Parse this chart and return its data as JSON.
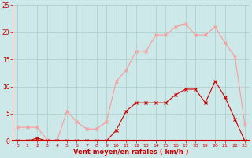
{
  "x": [
    0,
    1,
    2,
    3,
    4,
    5,
    6,
    7,
    8,
    9,
    10,
    11,
    12,
    13,
    14,
    15,
    16,
    17,
    18,
    19,
    20,
    21,
    22,
    23
  ],
  "rafales": [
    2.5,
    2.5,
    2.5,
    0.2,
    0.0,
    5.5,
    3.5,
    2.2,
    2.2,
    3.5,
    11.0,
    13.0,
    16.5,
    16.5,
    19.5,
    19.5,
    21.0,
    21.5,
    19.5,
    19.5,
    21.0,
    18.0,
    15.5,
    3.0
  ],
  "moyen": [
    0.0,
    0.0,
    0.5,
    0.0,
    0.0,
    0.0,
    0.0,
    0.0,
    0.0,
    0.0,
    2.0,
    5.5,
    7.0,
    7.0,
    7.0,
    7.0,
    8.5,
    9.5,
    9.5,
    7.0,
    11.0,
    8.0,
    4.0,
    0.0
  ],
  "rafales_color": "#ff9999",
  "moyen_color": "#cc0000",
  "bg_color": "#cce8e8",
  "grid_color": "#aacccc",
  "xlabel": "Vent moyen/en rafales ( km/h )",
  "ylim": [
    0,
    25
  ],
  "xlim": [
    -0.5,
    23.5
  ],
  "yticks": [
    0,
    5,
    10,
    15,
    20,
    25
  ],
  "xticks": [
    0,
    1,
    2,
    3,
    4,
    5,
    6,
    7,
    8,
    9,
    10,
    11,
    12,
    13,
    14,
    15,
    16,
    17,
    18,
    19,
    20,
    21,
    22,
    23
  ],
  "tick_color": "#cc0000",
  "label_color": "#cc0000",
  "marker": "x",
  "linewidth": 0.8,
  "markersize": 2.5,
  "markeredgewidth": 0.8,
  "xtick_fontsize": 4.5,
  "ytick_fontsize": 5.5,
  "xlabel_fontsize": 6.0
}
